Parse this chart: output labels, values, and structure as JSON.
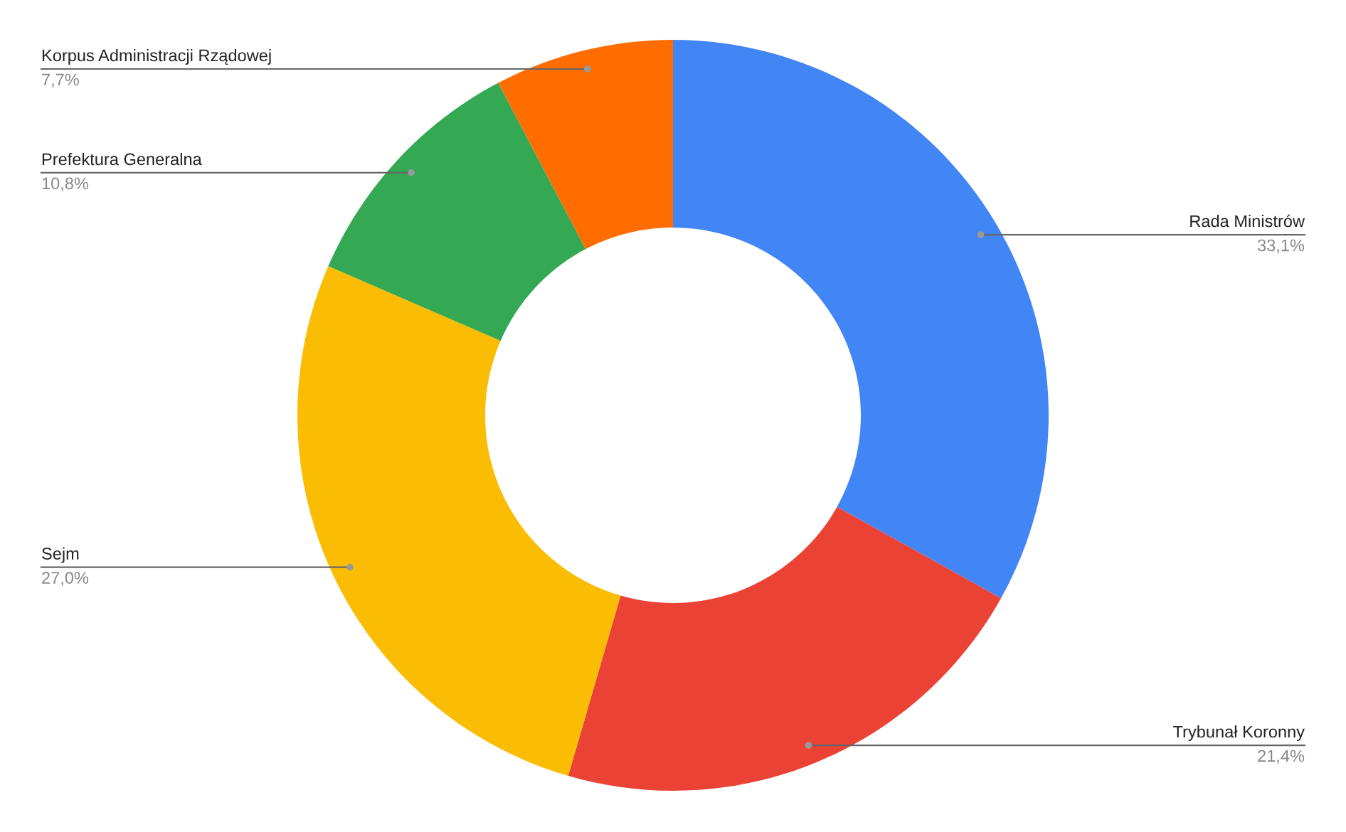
{
  "chart_data": {
    "type": "donut",
    "categories": [
      "Rada Ministrów",
      "Trybunał Koronny",
      "Sejm",
      "Prefektura Generalna",
      "Korpus Administracji Rządowej"
    ],
    "values": [
      33.1,
      21.4,
      27.0,
      10.8,
      7.7
    ],
    "value_labels": [
      "33,1%",
      "21,4%",
      "27,0%",
      "10,8%",
      "7,7%"
    ],
    "colors": [
      "#4285f4",
      "#ea4335",
      "#fbbc04",
      "#34a853",
      "#ff6d01"
    ],
    "legend": false
  }
}
